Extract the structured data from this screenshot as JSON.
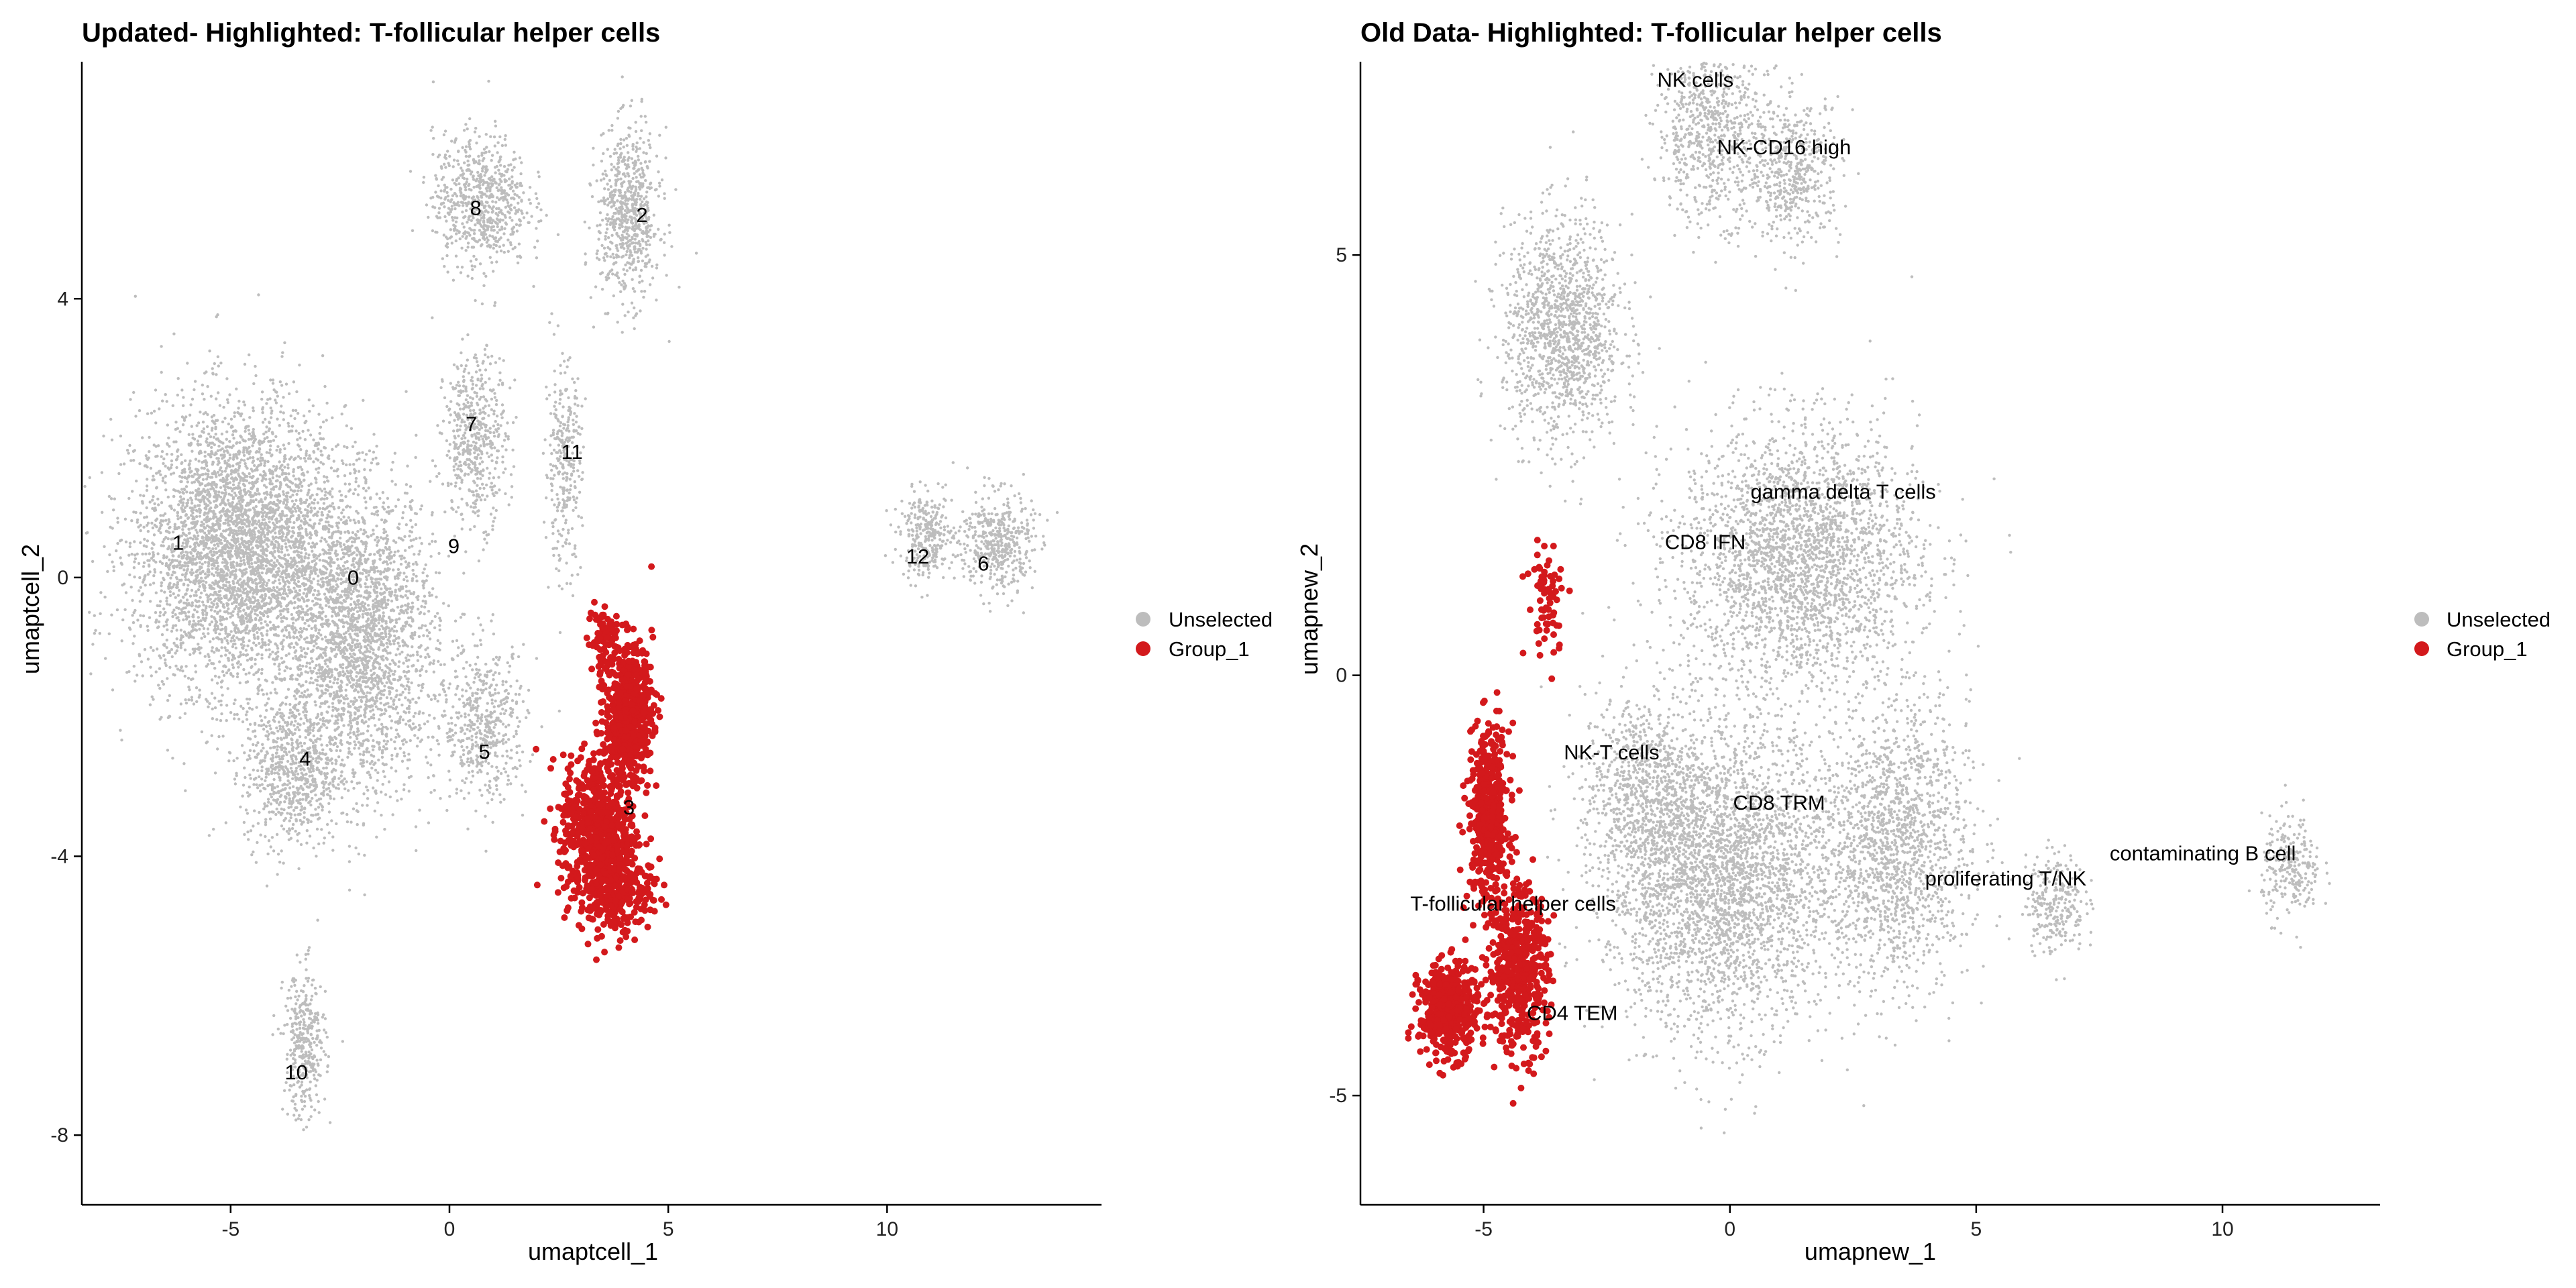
{
  "colors": {
    "unselected": "#bdbdbd",
    "group_1": "#d3191c",
    "axis": "#000000"
  },
  "chart_data": [
    {
      "type": "scatter",
      "title": "Updated- Highlighted: T-follicular helper cells",
      "xlabel": "umaptcell_1",
      "ylabel": "umaptcell_2",
      "xlim": [
        -8.4,
        14.9
      ],
      "ylim": [
        -9.0,
        7.4
      ],
      "xticks": [
        -5,
        0,
        5,
        10
      ],
      "yticks": [
        -8,
        -4,
        0,
        4
      ],
      "grid": false,
      "legend_position": "right",
      "series": [
        {
          "name": "Unselected",
          "color": "#bdbdbd",
          "point_count_shown": "dense"
        },
        {
          "name": "Group_1",
          "color": "#d3191c"
        }
      ],
      "clusters": [
        {
          "label": "0",
          "x": -2.2,
          "y": -0.1
        },
        {
          "label": "1",
          "x": -6.2,
          "y": 0.4
        },
        {
          "label": "2",
          "x": 4.4,
          "y": 5.1
        },
        {
          "label": "3",
          "x": 4.1,
          "y": -3.4
        },
        {
          "label": "4",
          "x": -3.3,
          "y": -2.7
        },
        {
          "label": "5",
          "x": 0.8,
          "y": -2.6
        },
        {
          "label": "6",
          "x": 12.2,
          "y": 0.1
        },
        {
          "label": "7",
          "x": 0.5,
          "y": 2.1
        },
        {
          "label": "8",
          "x": 0.6,
          "y": 5.2
        },
        {
          "label": "9",
          "x": 0.1,
          "y": 0.35
        },
        {
          "label": "10",
          "x": -3.5,
          "y": -7.2
        },
        {
          "label": "11",
          "x": 2.8,
          "y": 1.7
        },
        {
          "label": "12",
          "x": 10.7,
          "y": 0.2
        }
      ]
    },
    {
      "type": "scatter",
      "title": "Old Data- Highlighted: T-follicular helper cells",
      "xlabel": "umapnew_1",
      "ylabel": "umapnew_2",
      "xlim": [
        -7.5,
        13.2
      ],
      "ylim": [
        -6.3,
        7.3
      ],
      "xticks": [
        -5,
        0,
        5,
        10
      ],
      "yticks": [
        -5,
        0,
        5
      ],
      "grid": false,
      "legend_position": "right",
      "series": [
        {
          "name": "Unselected",
          "color": "#bdbdbd"
        },
        {
          "name": "Group_1",
          "color": "#d3191c"
        }
      ],
      "clusters": [
        {
          "label": "NK cells",
          "x": -0.7,
          "y": 7.0
        },
        {
          "label": "NK-CD16 high",
          "x": 1.1,
          "y": 6.2
        },
        {
          "label": "gamma delta T cells",
          "x": 2.3,
          "y": 2.1
        },
        {
          "label": "CD8 IFN",
          "x": -0.5,
          "y": 1.5
        },
        {
          "label": "NK-T cells",
          "x": -2.4,
          "y": -1.0
        },
        {
          "label": "CD8 TRM",
          "x": 1.0,
          "y": -1.6
        },
        {
          "label": "contaminating  B cell",
          "x": 9.6,
          "y": -2.2
        },
        {
          "label": "proliferating T/NK",
          "x": 5.6,
          "y": -2.5
        },
        {
          "label": "T-follicular helper cells",
          "x": -4.4,
          "y": -2.8
        },
        {
          "label": "CD4 TEM",
          "x": -3.2,
          "y": -4.1
        }
      ]
    }
  ],
  "legend": {
    "items": [
      {
        "label": "Unselected",
        "color": "#bdbdbd"
      },
      {
        "label": "Group_1",
        "color": "#d3191c"
      }
    ]
  }
}
